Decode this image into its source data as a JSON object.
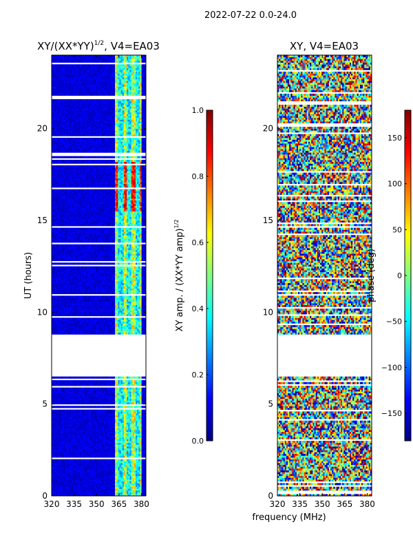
{
  "suptitle": "2022-07-22 0.0-24.0",
  "shared_xlabel": "frequency (MHz)",
  "chart_data": [
    {
      "type": "heatmap",
      "title_main": "XY/(XX*YY)",
      "title_sup": "1/2",
      "title_tail": ", V4=EA03",
      "x": {
        "range": [
          320,
          383
        ],
        "ticks": [
          320,
          335,
          350,
          365,
          380
        ],
        "tick_labels": [
          "320",
          "335",
          "350",
          "365",
          "380"
        ],
        "label": ""
      },
      "y": {
        "range": [
          0,
          24
        ],
        "ticks": [
          0,
          5,
          10,
          15,
          20
        ],
        "tick_labels": [
          "0",
          "5",
          "10",
          "15",
          "20"
        ],
        "label": "UT (hours)"
      },
      "colorbar": {
        "range": [
          0.0,
          1.0
        ],
        "ticks": [
          0.0,
          0.2,
          0.4,
          0.6,
          0.8,
          1.0
        ],
        "tick_labels": [
          "0.0",
          "0.2",
          "0.4",
          "0.6",
          "0.8",
          "1.0"
        ],
        "label_main": "XY amp. / (XX*YY amp)",
        "label_sup": "1/2",
        "colormap": "jet"
      },
      "flagged_gap_hours": [
        6.45,
        8.75
      ],
      "rfi_channel_band_mhz": [
        362,
        380
      ],
      "typical_background_value": 0.05,
      "typical_rfi_value": 0.55
    },
    {
      "type": "heatmap",
      "title_main": "XY, V4=EA03",
      "x": {
        "range": [
          320,
          383
        ],
        "ticks": [
          320,
          335,
          350,
          365,
          380
        ],
        "tick_labels": [
          "320",
          "335",
          "350",
          "365",
          "380"
        ],
        "label": ""
      },
      "y": {
        "range": [
          0,
          24
        ],
        "ticks": [
          0,
          5,
          10,
          15,
          20
        ],
        "tick_labels": [
          "0",
          "5",
          "10",
          "15",
          "20"
        ],
        "label": ""
      },
      "colorbar": {
        "range": [
          -180,
          180
        ],
        "ticks": [
          -150,
          -100,
          -50,
          0,
          50,
          100,
          150
        ],
        "tick_labels": [
          "−150",
          "−100",
          "−50",
          "0",
          "50",
          "100",
          "150"
        ],
        "label": "phase (deg)",
        "colormap": "jet"
      },
      "flagged_gap_hours": [
        6.45,
        8.75
      ],
      "value_description": "random phase noise"
    }
  ],
  "colors": {
    "background": "#ffffff",
    "axis": "#000000"
  }
}
